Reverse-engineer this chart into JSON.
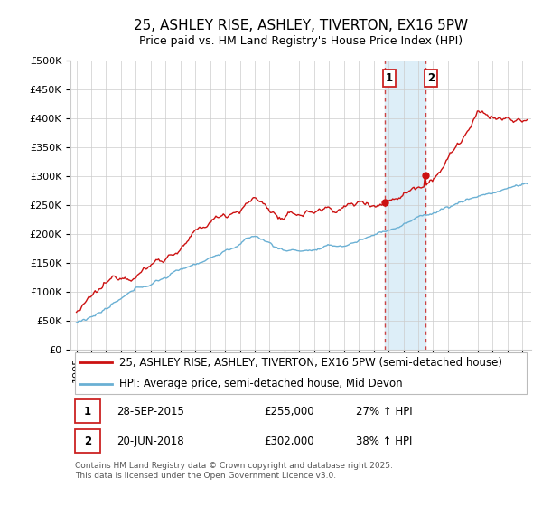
{
  "title": "25, ASHLEY RISE, ASHLEY, TIVERTON, EX16 5PW",
  "subtitle": "Price paid vs. HM Land Registry's House Price Index (HPI)",
  "ylabel_ticks": [
    "£0",
    "£50K",
    "£100K",
    "£150K",
    "£200K",
    "£250K",
    "£300K",
    "£350K",
    "£400K",
    "£450K",
    "£500K"
  ],
  "ytick_values": [
    0,
    50000,
    100000,
    150000,
    200000,
    250000,
    300000,
    350000,
    400000,
    450000,
    500000
  ],
  "ylim": [
    0,
    500000
  ],
  "xlim_start": 1994.6,
  "xlim_end": 2025.6,
  "legend_line1": "25, ASHLEY RISE, ASHLEY, TIVERTON, EX16 5PW (semi-detached house)",
  "legend_line2": "HPI: Average price, semi-detached house, Mid Devon",
  "line1_color": "#cc1111",
  "line2_color": "#6ab0d4",
  "point1_x": 2015.75,
  "point1_y": 255000,
  "point2_x": 2018.47,
  "point2_y": 302000,
  "shade_x1": 2015.75,
  "shade_x2": 2018.47,
  "shade_color": "#ddeef8",
  "vline_color": "#cc4444",
  "point1_date": "28-SEP-2015",
  "point1_price": "£255,000",
  "point1_hpi_text": "27% ↑ HPI",
  "point2_date": "20-JUN-2018",
  "point2_price": "£302,000",
  "point2_hpi_text": "38% ↑ HPI",
  "footnote": "Contains HM Land Registry data © Crown copyright and database right 2025.\nThis data is licensed under the Open Government Licence v3.0.",
  "background_color": "#ffffff",
  "grid_color": "#cccccc",
  "title_fontsize": 11,
  "tick_fontsize": 8,
  "legend_fontsize": 8.5
}
